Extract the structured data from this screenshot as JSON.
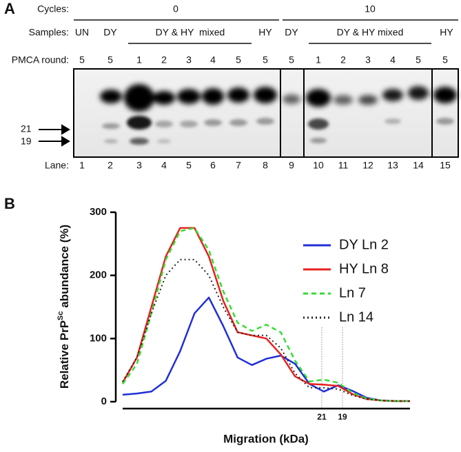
{
  "panel_a": {
    "label": "A",
    "cycles_label": "Cycles:",
    "cycles": [
      "0",
      "10"
    ],
    "samples_label": "Samples:",
    "samples": [
      "UN",
      "DY",
      "DY & HY  mixed",
      "HY",
      "DY",
      "DY & HY mixed",
      "HY"
    ],
    "round_label": "PMCA round:",
    "rounds": [
      5,
      5,
      1,
      2,
      3,
      4,
      5,
      5,
      5,
      1,
      2,
      3,
      4,
      5,
      5
    ],
    "markers": [
      "21",
      "19"
    ],
    "lane_label": "Lane:",
    "lanes": [
      1,
      2,
      3,
      4,
      5,
      6,
      7,
      8,
      9,
      10,
      11,
      12,
      13,
      14,
      15
    ]
  },
  "chart_data": {
    "type": "line",
    "label": "B",
    "ylabel": {
      "text": "Relative PrP",
      "superscript": "Sc",
      "rest": " abundance (%)"
    },
    "xlabel": "Migration (kDa)",
    "x": [
      0,
      5,
      10,
      15,
      20,
      25,
      30,
      35,
      40,
      45,
      50,
      55,
      60,
      65,
      70,
      75,
      80,
      85,
      90,
      95,
      100
    ],
    "xlim": [
      0,
      100
    ],
    "xticks": [
      {
        "value": 69.3,
        "label": "21"
      },
      {
        "value": 76.5,
        "label": "19"
      }
    ],
    "ylim": [
      0,
      300
    ],
    "yticks": [
      0,
      100,
      200,
      300
    ],
    "series": [
      {
        "name": "DY Ln 2",
        "color": "#1f2fd6",
        "dash": "solid",
        "values": [
          11,
          13,
          16,
          33,
          80,
          140,
          165,
          120,
          70,
          58,
          68,
          73,
          60,
          28,
          16,
          26,
          17,
          6,
          2,
          1,
          1
        ]
      },
      {
        "name": "HY Ln 8",
        "color": "#e8201e",
        "dash": "solid",
        "values": [
          30,
          70,
          150,
          230,
          275,
          275,
          230,
          160,
          110,
          105,
          100,
          75,
          40,
          28,
          27,
          25,
          12,
          4,
          2,
          1,
          1
        ]
      },
      {
        "name": "Ln 7",
        "color": "#33dd33",
        "dash": "dashed",
        "values": [
          28,
          60,
          140,
          225,
          270,
          275,
          240,
          175,
          125,
          112,
          122,
          110,
          65,
          32,
          35,
          30,
          14,
          5,
          2,
          1,
          1
        ]
      },
      {
        "name": "Ln 14",
        "color": "#222222",
        "dash": "dotted",
        "values": [
          32,
          70,
          140,
          200,
          225,
          225,
          200,
          150,
          110,
          105,
          105,
          85,
          45,
          22,
          22,
          20,
          10,
          4,
          2,
          1,
          1
        ]
      }
    ],
    "legend": "top-right"
  }
}
